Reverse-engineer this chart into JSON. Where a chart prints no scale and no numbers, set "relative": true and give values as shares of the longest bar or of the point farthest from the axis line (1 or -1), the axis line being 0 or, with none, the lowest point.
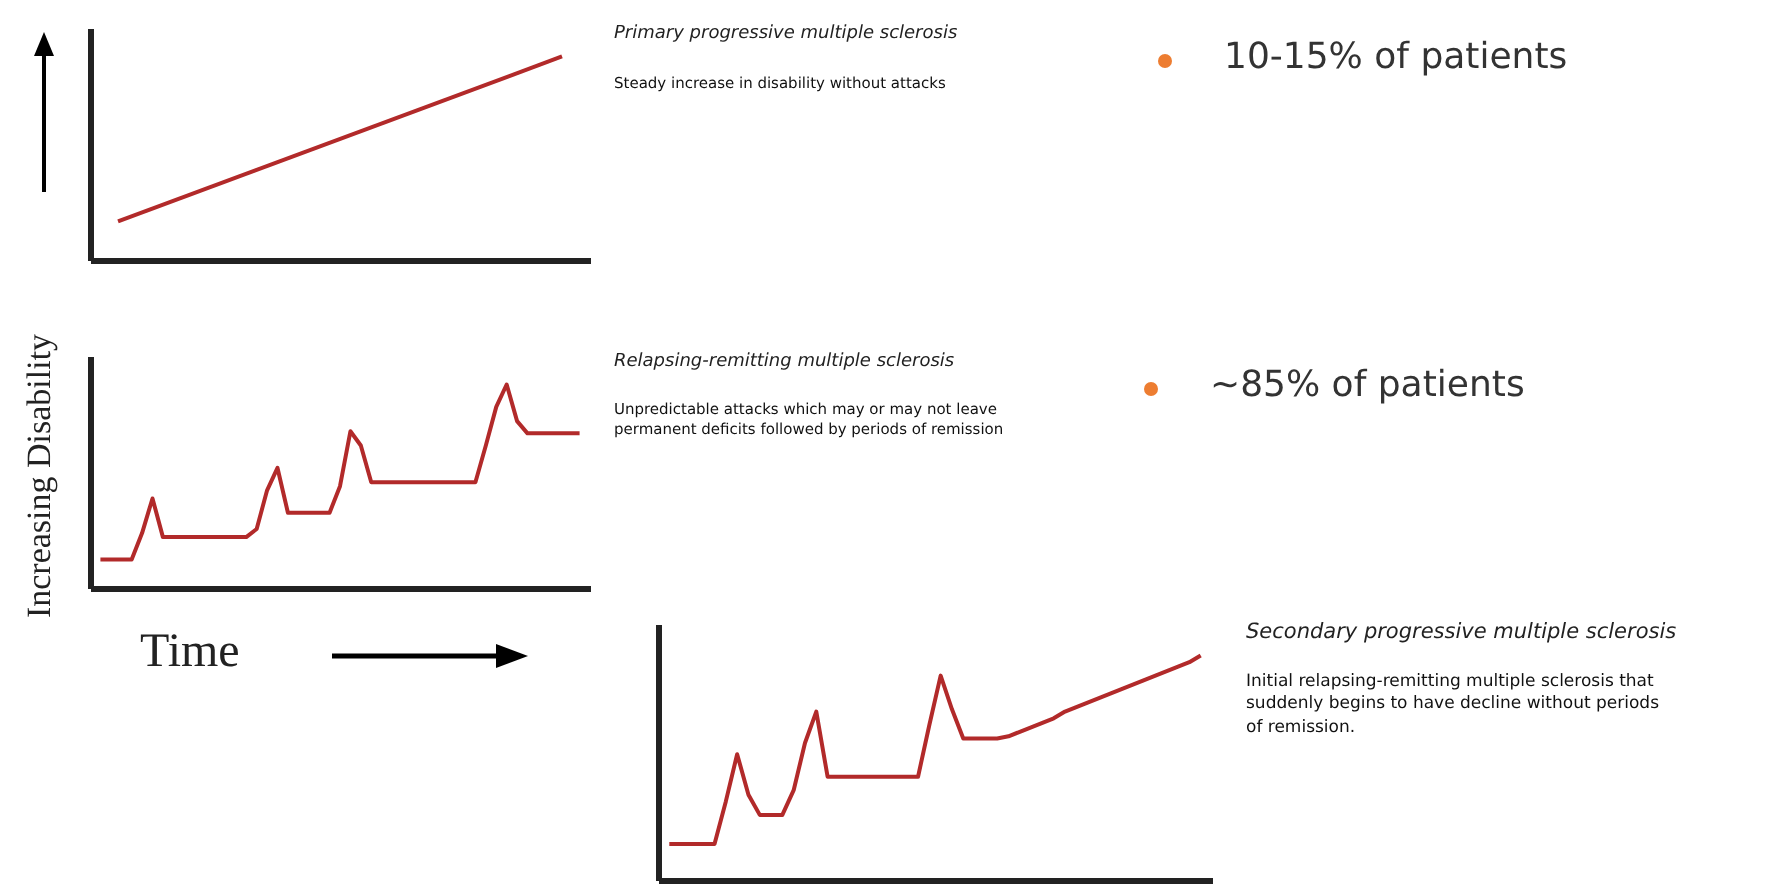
{
  "chart_data": [
    {
      "type": "line",
      "relative": true,
      "tick_labels": false,
      "grid": false,
      "color": "#b22a2a",
      "categories": [
        null,
        null
      ],
      "values": [
        0.19,
        1
      ],
      "annotations": [
        "Primary progressive multiple sclerosis",
        "Steady increase in disability without attacks",
        "10-15% of patients"
      ]
    },
    {
      "type": "line",
      "xlabel": "Time",
      "ylabel": "Increasing Disability",
      "relative": true,
      "tick_labels": false,
      "grid": false,
      "color": "#b22a2a",
      "categories": [
        null,
        null,
        null,
        null,
        null,
        null,
        null,
        null,
        null,
        null,
        null,
        null,
        null,
        null,
        null,
        null,
        null,
        null,
        null,
        null,
        null,
        null,
        null,
        null,
        null,
        null,
        null,
        null,
        null,
        null,
        null,
        null,
        null,
        null,
        null,
        null,
        null,
        null,
        null,
        null,
        null,
        null,
        null,
        null,
        null,
        null,
        null
      ],
      "values": [
        0.14,
        0.14,
        0.14,
        0.14,
        0.27,
        0.44,
        0.25,
        0.25,
        0.25,
        0.25,
        0.25,
        0.25,
        0.25,
        0.25,
        0.25,
        0.29,
        0.48,
        0.59,
        0.37,
        0.37,
        0.37,
        0.37,
        0.37,
        0.5,
        0.77,
        0.7,
        0.52,
        0.52,
        0.52,
        0.52,
        0.52,
        0.52,
        0.52,
        0.52,
        0.52,
        0.52,
        0.52,
        0.7,
        0.89,
        1,
        0.82,
        0.76,
        0.76,
        0.76,
        0.76,
        0.76,
        0.76
      ],
      "annotations": [
        "Relapsing-remitting multiple sclerosis",
        "Unpredictable attacks which may or may not leave permanent deficits followed by periods of remission",
        "~85% of patients"
      ]
    },
    {
      "type": "line",
      "relative": true,
      "tick_labels": false,
      "grid": false,
      "color": "#b22a2a",
      "categories": [
        null,
        null,
        null,
        null,
        null,
        null,
        null,
        null,
        null,
        null,
        null,
        null,
        null,
        null,
        null,
        null,
        null,
        null,
        null,
        null,
        null,
        null,
        null,
        null,
        null,
        null,
        null,
        null,
        null,
        null,
        null,
        null,
        null,
        null,
        null,
        null,
        null,
        null,
        null,
        null,
        null,
        null,
        null,
        null,
        null,
        null,
        null,
        null
      ],
      "values": [
        0.16,
        0.16,
        0.16,
        0.16,
        0.16,
        0.35,
        0.56,
        0.38,
        0.29,
        0.29,
        0.29,
        0.4,
        0.61,
        0.75,
        0.46,
        0.46,
        0.46,
        0.46,
        0.46,
        0.46,
        0.46,
        0.46,
        0.46,
        0.69,
        0.91,
        0.76,
        0.63,
        0.63,
        0.63,
        0.63,
        0.64,
        0.66,
        0.68,
        0.7,
        0.72,
        0.75,
        0.77,
        0.79,
        0.81,
        0.83,
        0.85,
        0.87,
        0.89,
        0.91,
        0.93,
        0.95,
        0.97,
        1
      ],
      "annotations": [
        "Secondary progressive multiple sclerosis",
        "Initial relapsing-remitting multiple sclerosis that suddenly begins to have decline without periods of remission."
      ]
    }
  ]
}
